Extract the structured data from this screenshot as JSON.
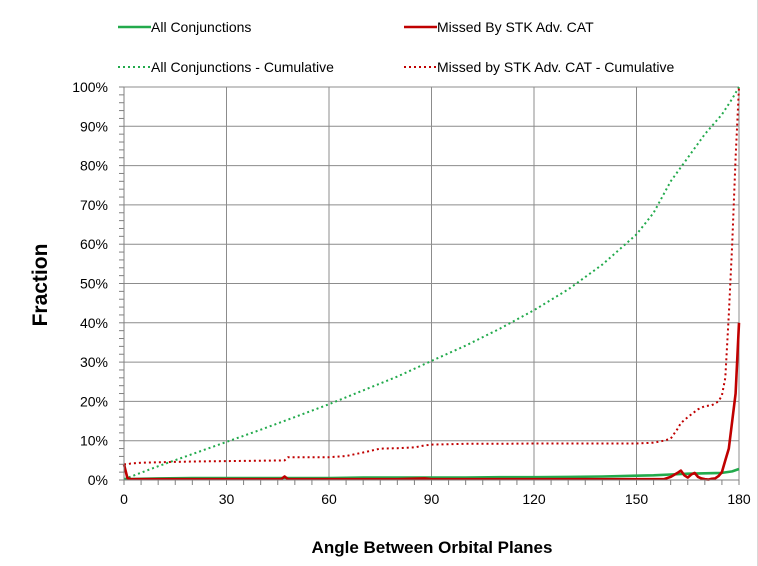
{
  "chart_data": {
    "type": "line",
    "xlabel": "Angle Between Orbital Planes",
    "ylabel": "Fraction",
    "xlim": [
      0,
      180
    ],
    "ylim": [
      0,
      1
    ],
    "x_ticks": [
      0,
      30,
      60,
      90,
      120,
      150,
      180
    ],
    "x_tick_labels": [
      "0",
      "30",
      "60",
      "90",
      "120",
      "150",
      "180"
    ],
    "y_ticks": [
      0,
      0.1,
      0.2,
      0.3,
      0.4,
      0.5,
      0.6,
      0.7,
      0.8,
      0.9,
      1.0
    ],
    "y_tick_labels": [
      "0%",
      "10%",
      "20%",
      "30%",
      "40%",
      "50%",
      "60%",
      "70%",
      "80%",
      "90%",
      "100%"
    ],
    "grid": true,
    "legend_position": "top",
    "series": [
      {
        "name": "All Conjunctions",
        "color": "#22aa4c",
        "style": "solid",
        "x": [
          0,
          5,
          10,
          20,
          30,
          40,
          50,
          60,
          70,
          80,
          90,
          100,
          110,
          120,
          130,
          140,
          150,
          155,
          160,
          165,
          170,
          175,
          178,
          180
        ],
        "y": [
          0.002,
          0.003,
          0.004,
          0.005,
          0.005,
          0.005,
          0.005,
          0.005,
          0.006,
          0.006,
          0.006,
          0.006,
          0.007,
          0.007,
          0.008,
          0.009,
          0.011,
          0.012,
          0.014,
          0.016,
          0.017,
          0.018,
          0.022,
          0.028
        ]
      },
      {
        "name": "Missed By STK Adv. CAT",
        "color": "#c00000",
        "style": "solid",
        "x": [
          0,
          1,
          2,
          4,
          10,
          20,
          30,
          40,
          46,
          47,
          48,
          50,
          60,
          70,
          80,
          88,
          90,
          100,
          110,
          120,
          130,
          140,
          150,
          158,
          160,
          162,
          163,
          164,
          165,
          166,
          167,
          168,
          169,
          170,
          171,
          172,
          173,
          174,
          175,
          176,
          177,
          178,
          179,
          180
        ],
        "y": [
          0.04,
          0.005,
          0.002,
          0.002,
          0.002,
          0.002,
          0.002,
          0.002,
          0.002,
          0.009,
          0.002,
          0.002,
          0.002,
          0.002,
          0.002,
          0.004,
          0.002,
          0.002,
          0.002,
          0.002,
          0.002,
          0.002,
          0.002,
          0.002,
          0.008,
          0.018,
          0.024,
          0.012,
          0.006,
          0.014,
          0.018,
          0.008,
          0.004,
          0.002,
          0.001,
          0.003,
          0.004,
          0.01,
          0.02,
          0.05,
          0.08,
          0.15,
          0.22,
          0.4
        ]
      },
      {
        "name": "All Conjunctions - Cumulative",
        "color": "#22aa4c",
        "style": "dotted",
        "x": [
          0,
          10,
          20,
          30,
          40,
          50,
          60,
          70,
          80,
          90,
          100,
          110,
          120,
          130,
          140,
          150,
          155,
          160,
          165,
          170,
          175,
          178,
          180
        ],
        "y": [
          0.002,
          0.035,
          0.066,
          0.097,
          0.128,
          0.16,
          0.193,
          0.228,
          0.263,
          0.303,
          0.342,
          0.385,
          0.432,
          0.485,
          0.548,
          0.625,
          0.68,
          0.76,
          0.82,
          0.88,
          0.93,
          0.97,
          1.0
        ]
      },
      {
        "name": "Missed by STK Adv. CAT - Cumulative",
        "color": "#c00000",
        "style": "dotted",
        "x": [
          0,
          1,
          2,
          5,
          10,
          20,
          30,
          40,
          47,
          48,
          55,
          60,
          65,
          70,
          75,
          80,
          85,
          88,
          90,
          100,
          110,
          120,
          130,
          140,
          150,
          155,
          158,
          160,
          162,
          163,
          165,
          168,
          170,
          172,
          174,
          175,
          176,
          177,
          178,
          179,
          180
        ],
        "y": [
          0.04,
          0.04,
          0.042,
          0.044,
          0.045,
          0.047,
          0.048,
          0.049,
          0.05,
          0.058,
          0.058,
          0.058,
          0.061,
          0.07,
          0.08,
          0.081,
          0.083,
          0.088,
          0.09,
          0.092,
          0.092,
          0.093,
          0.093,
          0.093,
          0.093,
          0.095,
          0.1,
          0.105,
          0.13,
          0.145,
          0.16,
          0.18,
          0.188,
          0.19,
          0.2,
          0.215,
          0.26,
          0.42,
          0.6,
          0.82,
          1.0
        ]
      }
    ]
  }
}
